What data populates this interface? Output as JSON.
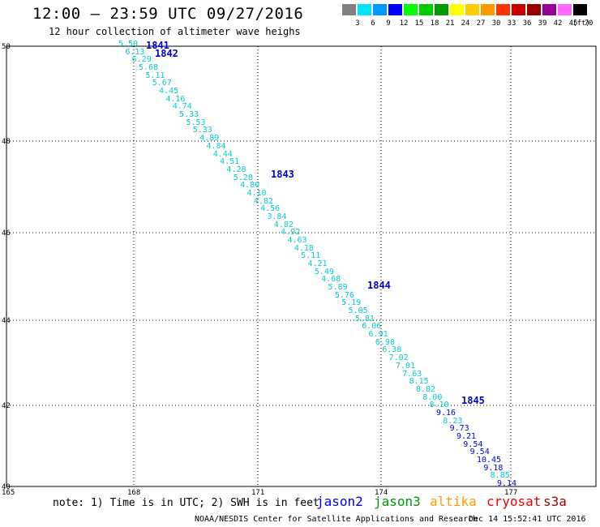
{
  "header": {
    "title": "12:00 – 23:59 UTC 09/27/2016",
    "subtitle": "12 hour collection of altimeter wave heighs"
  },
  "legend": {
    "unit": "(ft)",
    "bins": [
      {
        "label": "3",
        "color": "#808080"
      },
      {
        "label": "6",
        "color": "#00e5ff"
      },
      {
        "label": "9",
        "color": "#0099ff"
      },
      {
        "label": "12",
        "color": "#0000ff"
      },
      {
        "label": "15",
        "color": "#00ff00"
      },
      {
        "label": "18",
        "color": "#00cc00"
      },
      {
        "label": "21",
        "color": "#009900"
      },
      {
        "label": "24",
        "color": "#ffff00"
      },
      {
        "label": "27",
        "color": "#ffcc00"
      },
      {
        "label": "30",
        "color": "#ff9900"
      },
      {
        "label": "33",
        "color": "#ff3300"
      },
      {
        "label": "36",
        "color": "#cc0000"
      },
      {
        "label": "39",
        "color": "#990000"
      },
      {
        "label": "42",
        "color": "#990099"
      },
      {
        "label": "45",
        "color": "#ff66ff"
      },
      {
        "label": "70",
        "color": "#000000"
      }
    ]
  },
  "axes": {
    "lat_labels": [
      "50",
      "48",
      "46",
      "44",
      "42",
      "40"
    ],
    "lon_labels": [
      "165",
      "168",
      "171",
      "174",
      "177"
    ]
  },
  "passes": [
    {
      "id": "1841"
    },
    {
      "id": "1842"
    },
    {
      "id": "1843"
    },
    {
      "id": "1844"
    },
    {
      "id": "1845"
    }
  ],
  "wave_heights": [
    {
      "v": "5.50",
      "c": "#00cccc"
    },
    {
      "v": "6.13",
      "c": "#00cccc"
    },
    {
      "v": "6.29",
      "c": "#00cccc"
    },
    {
      "v": "5.68",
      "c": "#00cccc"
    },
    {
      "v": "5.11",
      "c": "#00cccc"
    },
    {
      "v": "5.67",
      "c": "#00cccc"
    },
    {
      "v": "4.45",
      "c": "#00cccc"
    },
    {
      "v": "4.16",
      "c": "#00cccc"
    },
    {
      "v": "4.74",
      "c": "#00cccc"
    },
    {
      "v": "5.33",
      "c": "#00cccc"
    },
    {
      "v": "5.53",
      "c": "#00cccc"
    },
    {
      "v": "5.33",
      "c": "#00cccc"
    },
    {
      "v": "4.89",
      "c": "#00cccc"
    },
    {
      "v": "4.84",
      "c": "#00cccc"
    },
    {
      "v": "4.44",
      "c": "#00cccc"
    },
    {
      "v": "4.51",
      "c": "#00cccc"
    },
    {
      "v": "4.28",
      "c": "#00cccc"
    },
    {
      "v": "5.28",
      "c": "#00cccc"
    },
    {
      "v": "4.80",
      "c": "#00cccc"
    },
    {
      "v": "4.10",
      "c": "#00cccc"
    },
    {
      "v": "4.82",
      "c": "#00cccc"
    },
    {
      "v": "4.56",
      "c": "#00cccc"
    },
    {
      "v": "3.84",
      "c": "#00cccc"
    },
    {
      "v": "4.82",
      "c": "#00cccc"
    },
    {
      "v": "4.92",
      "c": "#00cccc"
    },
    {
      "v": "4.63",
      "c": "#00cccc"
    },
    {
      "v": "4.18",
      "c": "#00cccc"
    },
    {
      "v": "5.11",
      "c": "#00cccc"
    },
    {
      "v": "4.21",
      "c": "#00cccc"
    },
    {
      "v": "5.49",
      "c": "#00cccc"
    },
    {
      "v": "4.68",
      "c": "#00cccc"
    },
    {
      "v": "5.89",
      "c": "#00cccc"
    },
    {
      "v": "5.76",
      "c": "#00cccc"
    },
    {
      "v": "5.19",
      "c": "#00cccc"
    },
    {
      "v": "5.05",
      "c": "#00cccc"
    },
    {
      "v": "5.81",
      "c": "#00cccc"
    },
    {
      "v": "6.06",
      "c": "#00cccc"
    },
    {
      "v": "6.91",
      "c": "#00cccc"
    },
    {
      "v": "6.90",
      "c": "#00cccc"
    },
    {
      "v": "6.38",
      "c": "#00cccc"
    },
    {
      "v": "7.02",
      "c": "#00cccc"
    },
    {
      "v": "7.01",
      "c": "#00cccc"
    },
    {
      "v": "7.63",
      "c": "#00cccc"
    },
    {
      "v": "8.15",
      "c": "#00cccc"
    },
    {
      "v": "8.02",
      "c": "#00cccc"
    },
    {
      "v": "8.00",
      "c": "#00cccc"
    },
    {
      "v": "8.10",
      "c": "#00cccc"
    },
    {
      "v": "9.16",
      "c": "#0000cc"
    },
    {
      "v": "8.23",
      "c": "#00cccc"
    },
    {
      "v": "9.73",
      "c": "#0000cc"
    },
    {
      "v": "9.21",
      "c": "#0000cc"
    },
    {
      "v": "9.54",
      "c": "#0000cc"
    },
    {
      "v": "9.54",
      "c": "#0000cc"
    },
    {
      "v": "10.45",
      "c": "#0000cc"
    },
    {
      "v": "9.18",
      "c": "#0000cc"
    },
    {
      "v": "8.85",
      "c": "#00cccc"
    },
    {
      "v": "9.14",
      "c": "#0000cc"
    }
  ],
  "footer": {
    "note": "note: 1) Time is in UTC; 2) SWH is in feet",
    "satellites": [
      {
        "name": "jason2",
        "color": "#0000ee"
      },
      {
        "name": "jason3",
        "color": "#009900"
      },
      {
        "name": "altika",
        "color": "#ff9900"
      },
      {
        "name": "cryosat",
        "color": "#ee0000"
      },
      {
        "name": "s3a",
        "color": "#990000"
      }
    ],
    "credit": "NOAA/NESDIS Center for Satellite Applications and Research",
    "timestamp": "Dec 14 15:52:41 UTC 2016"
  }
}
